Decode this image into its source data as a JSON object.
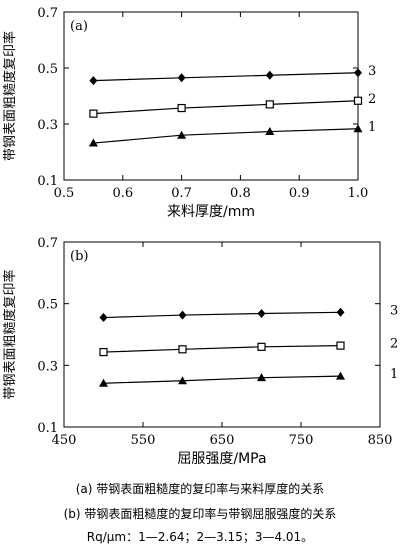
{
  "chart_data": [
    {
      "type": "line",
      "panel_label": "(a)",
      "xlabel": "来料厚度/mm",
      "ylabel": "带钢表面粗糙度复印率",
      "xlim": [
        0.5,
        1.0
      ],
      "ylim": [
        0.1,
        0.7
      ],
      "xticks": [
        "0.5",
        "0.6",
        "0.7",
        "0.8",
        "0.9",
        "1.0"
      ],
      "yticks": [
        "0.1",
        "0.3",
        "0.5",
        "0.7"
      ],
      "x": [
        0.55,
        0.7,
        0.85,
        1.0
      ],
      "series": [
        {
          "name": "1",
          "marker": "triangle",
          "values": [
            0.232,
            0.26,
            0.273,
            0.283
          ]
        },
        {
          "name": "2",
          "marker": "square",
          "values": [
            0.337,
            0.357,
            0.37,
            0.383
          ]
        },
        {
          "name": "3",
          "marker": "diamond",
          "values": [
            0.455,
            0.465,
            0.474,
            0.483
          ]
        }
      ]
    },
    {
      "type": "line",
      "panel_label": "(b)",
      "xlabel": "屈服强度/MPa",
      "ylabel": "带钢表面粗糙度复印率",
      "xlim": [
        450,
        850
      ],
      "ylim": [
        0.1,
        0.7
      ],
      "xticks": [
        "450",
        "550",
        "650",
        "750",
        "850"
      ],
      "yticks": [
        "0.1",
        "0.3",
        "0.5",
        "0.7"
      ],
      "x": [
        500,
        600,
        700,
        800
      ],
      "series": [
        {
          "name": "1",
          "marker": "triangle",
          "values": [
            0.242,
            0.25,
            0.26,
            0.265
          ]
        },
        {
          "name": "2",
          "marker": "square",
          "values": [
            0.343,
            0.352,
            0.36,
            0.364
          ]
        },
        {
          "name": "3",
          "marker": "diamond",
          "values": [
            0.455,
            0.463,
            0.468,
            0.472
          ]
        }
      ]
    }
  ],
  "captions": {
    "a": "(a)  带钢表面粗糙度的复印率与来料厚度的关系",
    "b": "(b)  带钢表面粗糙度的复印率与带钢屈服强度的关系",
    "rq": "Rq/μm：1—2.64；2—3.15；3—4.01。"
  }
}
